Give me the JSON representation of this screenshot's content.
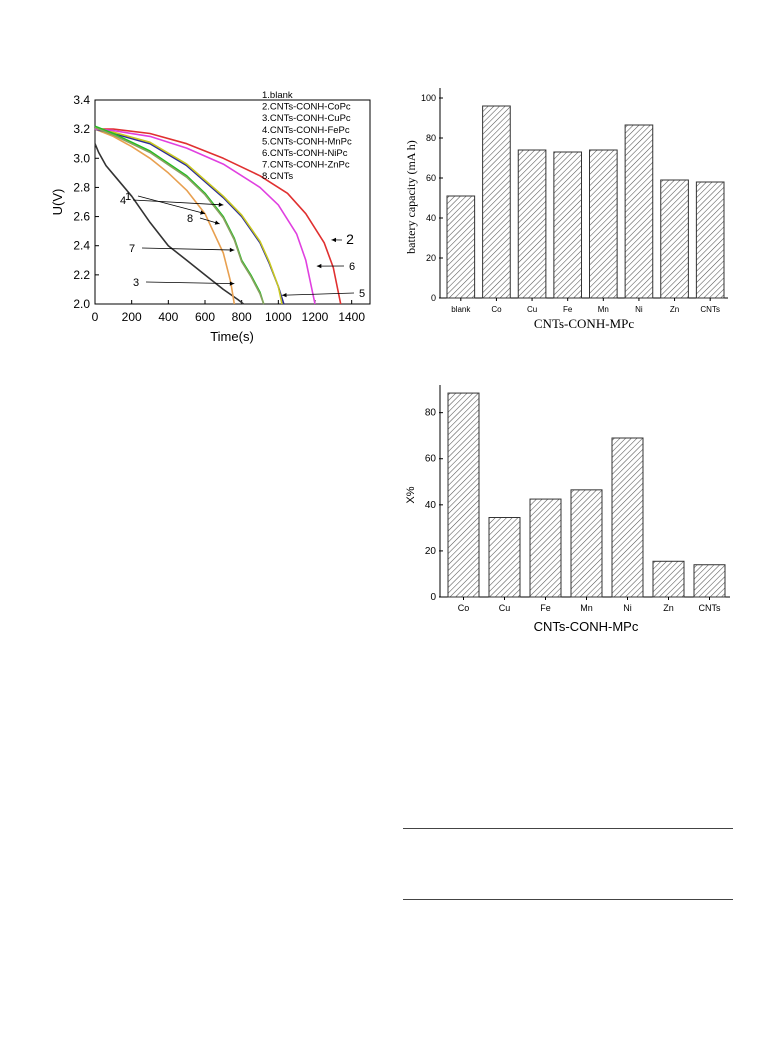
{
  "chart_data": [
    {
      "type": "line",
      "xlabel": "Time(s)",
      "ylabel": "U(V)",
      "xlim": [
        0,
        1500
      ],
      "ylim": [
        2.0,
        3.4
      ],
      "xticks": [
        "0",
        "200",
        "400",
        "600",
        "800",
        "1000",
        "1200",
        "1400"
      ],
      "yticks": [
        "2.0",
        "2.2",
        "2.4",
        "2.6",
        "2.8",
        "3.0",
        "3.2",
        "3.4"
      ],
      "legend": [
        "1.blank",
        "2.CNTs-CONH-CoPc",
        "3.CNTs-CONH-CuPc",
        "4.CNTs-CONH-FePc",
        "5.CNTs-CONH-MnPc",
        "6.CNTs-CONH-NiPc",
        "7.CNTs-CONH-ZnPc",
        "8.CNTs"
      ],
      "legend_position": "top-right",
      "series": [
        {
          "name": "1",
          "color": "#333333",
          "x": [
            0,
            20,
            60,
            120,
            200,
            300,
            400,
            500,
            600,
            700,
            780,
            810
          ],
          "y": [
            3.1,
            3.04,
            2.95,
            2.86,
            2.74,
            2.56,
            2.4,
            2.3,
            2.2,
            2.1,
            2.03,
            2.0
          ]
        },
        {
          "name": "2",
          "color": "#e03030",
          "x": [
            0,
            100,
            300,
            500,
            700,
            900,
            1050,
            1150,
            1250,
            1300,
            1340
          ],
          "y": [
            3.2,
            3.2,
            3.17,
            3.1,
            3.0,
            2.88,
            2.76,
            2.62,
            2.42,
            2.25,
            2.0
          ]
        },
        {
          "name": "3",
          "color": "#e8a050",
          "x": [
            0,
            100,
            200,
            300,
            400,
            500,
            600,
            700,
            740,
            760
          ],
          "y": [
            3.2,
            3.15,
            3.08,
            3.0,
            2.9,
            2.78,
            2.62,
            2.35,
            2.15,
            2.0
          ]
        },
        {
          "name": "4",
          "color": "#2a2a9a",
          "x": [
            0,
            100,
            300,
            500,
            700,
            800,
            900,
            950,
            1000,
            1030
          ],
          "y": [
            3.2,
            3.17,
            3.1,
            2.95,
            2.73,
            2.6,
            2.42,
            2.28,
            2.12,
            2.0
          ]
        },
        {
          "name": "5",
          "color": "#c8c820",
          "x": [
            0,
            100,
            300,
            500,
            700,
            800,
            900,
            950,
            1000,
            1020
          ],
          "y": [
            3.21,
            3.18,
            3.11,
            2.96,
            2.74,
            2.61,
            2.43,
            2.29,
            2.12,
            2.0
          ]
        },
        {
          "name": "6",
          "color": "#e040e0",
          "x": [
            0,
            100,
            300,
            500,
            700,
            900,
            1000,
            1100,
            1150,
            1200
          ],
          "y": [
            3.2,
            3.19,
            3.15,
            3.07,
            2.96,
            2.8,
            2.68,
            2.48,
            2.3,
            2.0
          ]
        },
        {
          "name": "7",
          "color": "#20c020",
          "x": [
            0,
            100,
            300,
            500,
            600,
            700,
            760,
            800,
            850,
            900,
            920
          ],
          "y": [
            3.22,
            3.17,
            3.05,
            2.88,
            2.76,
            2.6,
            2.45,
            2.3,
            2.2,
            2.08,
            2.0
          ]
        },
        {
          "name": "8",
          "color": "#8aa060",
          "x": [
            0,
            100,
            300,
            500,
            600,
            700,
            760,
            800,
            850,
            900,
            920
          ],
          "y": [
            3.21,
            3.16,
            3.04,
            2.87,
            2.75,
            2.59,
            2.44,
            2.29,
            2.19,
            2.07,
            2.0
          ]
        }
      ],
      "annotations": [
        {
          "text": "1",
          "x": 600,
          "y": 2.62
        },
        {
          "text": "2",
          "x": 1290,
          "y": 2.44
        },
        {
          "text": "3",
          "x": 760,
          "y": 2.14
        },
        {
          "text": "4",
          "x": 700,
          "y": 2.68
        },
        {
          "text": "5",
          "x": 1020,
          "y": 2.06
        },
        {
          "text": "6",
          "x": 1210,
          "y": 2.26
        },
        {
          "text": "7",
          "x": 760,
          "y": 2.37
        },
        {
          "text": "8",
          "x": 680,
          "y": 2.55
        }
      ]
    },
    {
      "type": "bar",
      "categories": [
        "blank",
        "Co",
        "Cu",
        "Fe",
        "Mn",
        "Ni",
        "Zn",
        "CNTs"
      ],
      "values": [
        51,
        96,
        74,
        73,
        74,
        86.5,
        59,
        58
      ],
      "xlabel": "CNTs-CONH-MPc",
      "ylabel": "battery capacity (mA h)",
      "ylim": [
        0,
        105
      ],
      "yticks": [
        "0",
        "20",
        "40",
        "60",
        "80",
        "100"
      ]
    },
    {
      "type": "bar",
      "categories": [
        "Co",
        "Cu",
        "Fe",
        "Mn",
        "Ni",
        "Zn",
        "CNTs"
      ],
      "values": [
        88.5,
        34.5,
        42.5,
        46.5,
        69,
        15.5,
        14
      ],
      "xlabel": "CNTs-CONH-MPc",
      "ylabel": "X%",
      "ylim": [
        0,
        92
      ],
      "yticks": [
        "0",
        "20",
        "40",
        "60",
        "80"
      ]
    }
  ]
}
